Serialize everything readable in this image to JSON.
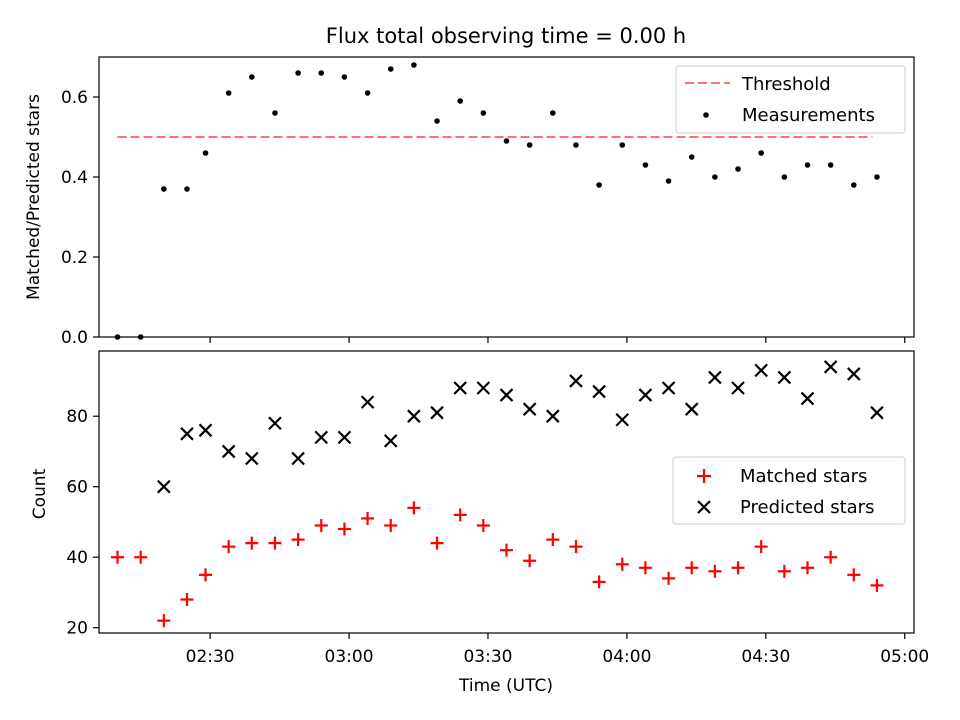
{
  "chart_data": [
    {
      "type": "scatter",
      "title": "Flux total observing time = 0.00 h",
      "xlabel": "",
      "ylabel": "Matched/Predicted stars",
      "x_domain": [
        "02:06",
        "05:02"
      ],
      "ylim": [
        0,
        0.7
      ],
      "yticks": [
        "0.0",
        "0.2",
        "0.4",
        "0.6"
      ],
      "x_tick_positions": [
        "02:30",
        "03:00",
        "03:30",
        "04:00",
        "04:30",
        "05:00"
      ],
      "legend_position": "upper right",
      "threshold": {
        "name": "Threshold",
        "value": 0.5,
        "x_start": "02:10",
        "x_end": "04:53",
        "color": "#ff7070"
      },
      "series": [
        {
          "name": "Measurements",
          "color": "#000000",
          "x": [
            "02:10",
            "02:15",
            "02:20",
            "02:25",
            "02:29",
            "02:34",
            "02:39",
            "02:44",
            "02:49",
            "02:54",
            "02:59",
            "03:04",
            "03:09",
            "03:14",
            "03:19",
            "03:24",
            "03:29",
            "03:34",
            "03:39",
            "03:44",
            "03:49",
            "03:54",
            "03:59",
            "04:04",
            "04:09",
            "04:14",
            "04:19",
            "04:24",
            "04:29",
            "04:34",
            "04:39",
            "04:44",
            "04:49",
            "04:54"
          ],
          "values": [
            0.0,
            0.0,
            0.37,
            0.37,
            0.46,
            0.61,
            0.65,
            0.56,
            0.66,
            0.66,
            0.65,
            0.61,
            0.67,
            0.68,
            0.54,
            0.59,
            0.56,
            0.49,
            0.48,
            0.56,
            0.48,
            0.38,
            0.48,
            0.43,
            0.39,
            0.45,
            0.4,
            0.42,
            0.46,
            0.4,
            0.43,
            0.43,
            0.38,
            0.4
          ]
        }
      ]
    },
    {
      "type": "scatter",
      "title": "",
      "xlabel": "Time (UTC)",
      "ylabel": "Count",
      "x_domain": [
        "02:06",
        "05:02"
      ],
      "ylim": [
        18.5,
        98.5
      ],
      "yticks": [
        "20",
        "40",
        "60",
        "80"
      ],
      "xticks": [
        "02:30",
        "03:00",
        "03:30",
        "04:00",
        "04:30",
        "05:00"
      ],
      "legend_position": "center right",
      "series": [
        {
          "name": "Matched stars",
          "marker": "+",
          "color": "#ff0000",
          "x": [
            "02:10",
            "02:15",
            "02:20",
            "02:25",
            "02:29",
            "02:34",
            "02:39",
            "02:44",
            "02:49",
            "02:54",
            "02:59",
            "03:04",
            "03:09",
            "03:14",
            "03:19",
            "03:24",
            "03:29",
            "03:34",
            "03:39",
            "03:44",
            "03:49",
            "03:54",
            "03:59",
            "04:04",
            "04:09",
            "04:14",
            "04:19",
            "04:24",
            "04:29",
            "04:34",
            "04:39",
            "04:44",
            "04:49",
            "04:54"
          ],
          "values": [
            40,
            40,
            22,
            28,
            35,
            43,
            44,
            44,
            45,
            49,
            48,
            51,
            49,
            54,
            44,
            52,
            49,
            42,
            39,
            45,
            43,
            33,
            38,
            37,
            34,
            37,
            36,
            37,
            43,
            36,
            37,
            40,
            35,
            32
          ]
        },
        {
          "name": "Predicted stars",
          "marker": "x",
          "color": "#000000",
          "x": [
            "02:20",
            "02:25",
            "02:29",
            "02:34",
            "02:39",
            "02:44",
            "02:49",
            "02:54",
            "02:59",
            "03:04",
            "03:09",
            "03:14",
            "03:19",
            "03:24",
            "03:29",
            "03:34",
            "03:39",
            "03:44",
            "03:49",
            "03:54",
            "03:59",
            "04:04",
            "04:09",
            "04:14",
            "04:19",
            "04:24",
            "04:29",
            "04:34",
            "04:39",
            "04:44",
            "04:49",
            "04:54"
          ],
          "values": [
            60,
            75,
            76,
            70,
            68,
            78,
            68,
            74,
            74,
            84,
            73,
            80,
            81,
            88,
            88,
            86,
            82,
            80,
            90,
            87,
            79,
            86,
            88,
            82,
            91,
            88,
            93,
            91,
            85,
            94,
            92,
            81
          ]
        }
      ]
    }
  ]
}
